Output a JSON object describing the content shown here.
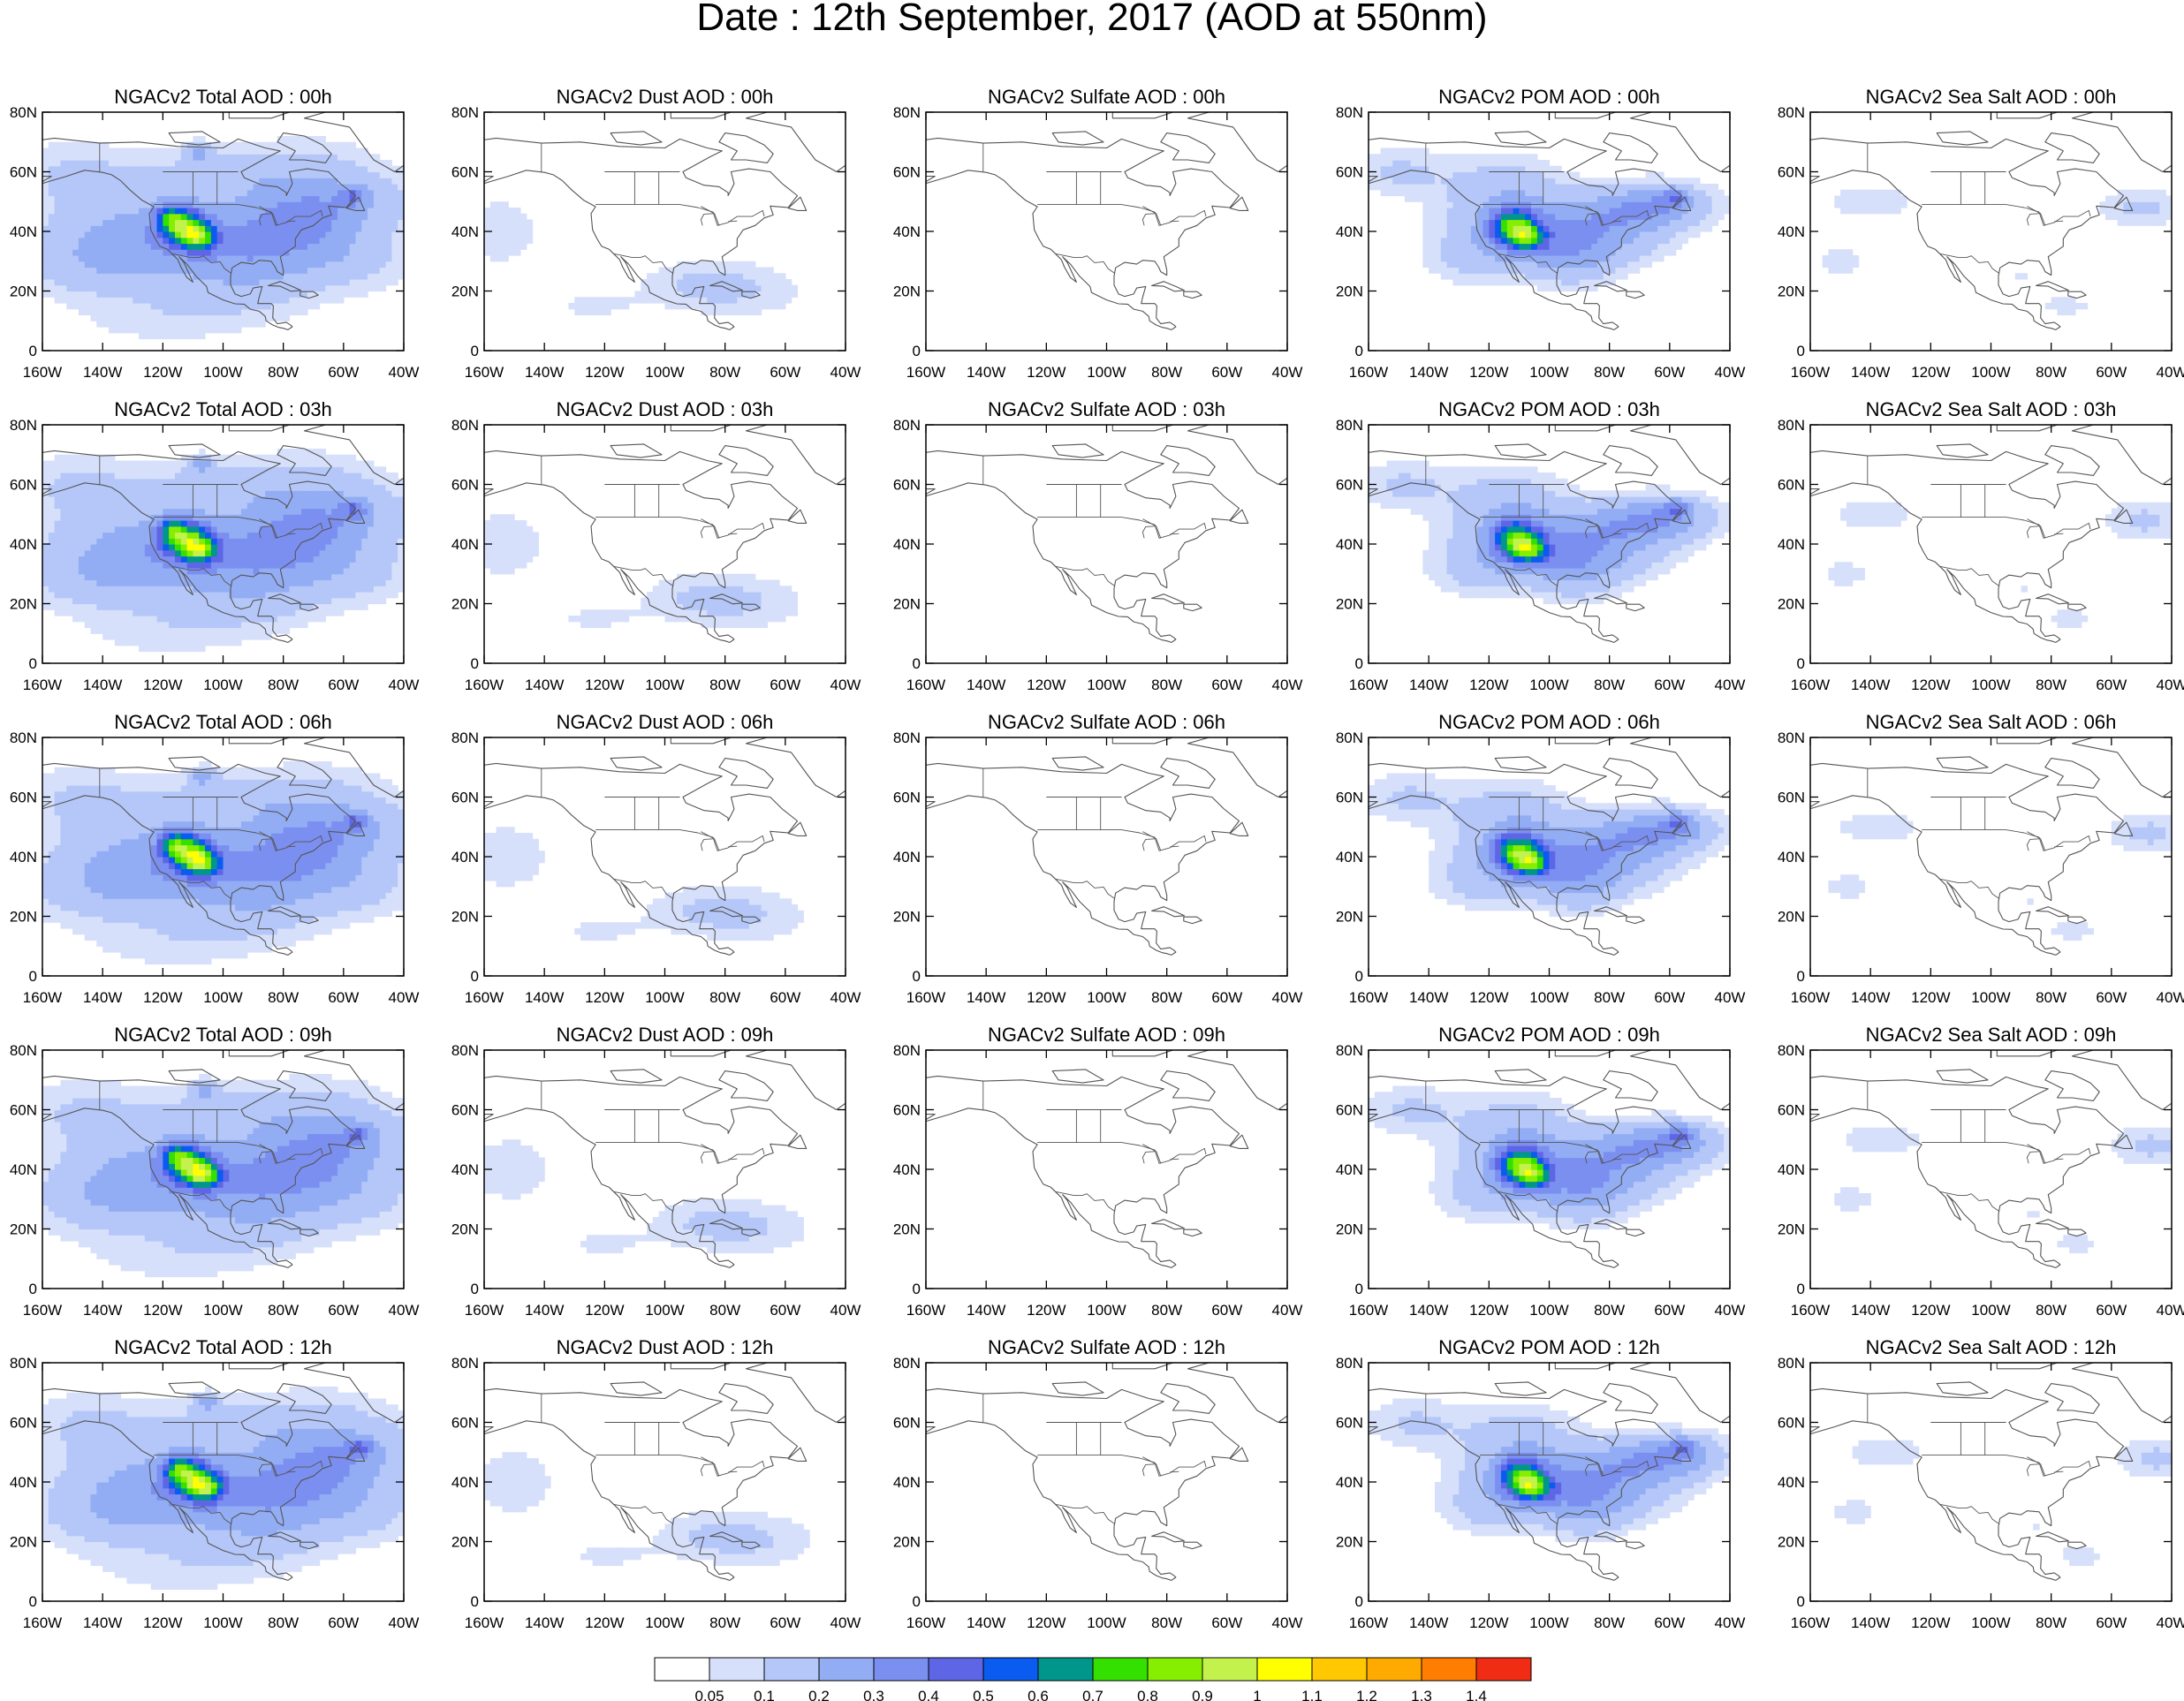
{
  "title": "Date : 12th September, 2017 (AOD at 550nm)",
  "lat_ticks": [
    "0",
    "20N",
    "40N",
    "60N",
    "80N"
  ],
  "lon_ticks": [
    "160W",
    "140W",
    "120W",
    "100W",
    "80W",
    "60W",
    "40W"
  ],
  "panels": [
    {
      "title": "NGACv2 Total AOD : 00h",
      "species": "total",
      "hour": 0
    },
    {
      "title": "NGACv2 Dust AOD : 00h",
      "species": "dust",
      "hour": 0
    },
    {
      "title": "NGACv2 Sulfate AOD : 00h",
      "species": "sulfate",
      "hour": 0
    },
    {
      "title": "NGACv2 POM AOD : 00h",
      "species": "pom",
      "hour": 0
    },
    {
      "title": "NGACv2 Sea Salt AOD : 00h",
      "species": "seasalt",
      "hour": 0
    },
    {
      "title": "NGACv2 Total AOD : 03h",
      "species": "total",
      "hour": 3
    },
    {
      "title": "NGACv2 Dust AOD : 03h",
      "species": "dust",
      "hour": 3
    },
    {
      "title": "NGACv2 Sulfate AOD : 03h",
      "species": "sulfate",
      "hour": 3
    },
    {
      "title": "NGACv2 POM AOD : 03h",
      "species": "pom",
      "hour": 3
    },
    {
      "title": "NGACv2 Sea Salt AOD : 03h",
      "species": "seasalt",
      "hour": 3
    },
    {
      "title": "NGACv2 Total AOD : 06h",
      "species": "total",
      "hour": 6
    },
    {
      "title": "NGACv2 Dust AOD : 06h",
      "species": "dust",
      "hour": 6
    },
    {
      "title": "NGACv2 Sulfate AOD : 06h",
      "species": "sulfate",
      "hour": 6
    },
    {
      "title": "NGACv2 POM AOD : 06h",
      "species": "pom",
      "hour": 6
    },
    {
      "title": "NGACv2 Sea Salt AOD : 06h",
      "species": "seasalt",
      "hour": 6
    },
    {
      "title": "NGACv2 Total AOD : 09h",
      "species": "total",
      "hour": 9
    },
    {
      "title": "NGACv2 Dust AOD : 09h",
      "species": "dust",
      "hour": 9
    },
    {
      "title": "NGACv2 Sulfate AOD : 09h",
      "species": "sulfate",
      "hour": 9
    },
    {
      "title": "NGACv2 POM AOD : 09h",
      "species": "pom",
      "hour": 9
    },
    {
      "title": "NGACv2 Sea Salt  AOD : 09h",
      "species": "seasalt",
      "hour": 9
    },
    {
      "title": "NGACv2 Total AOD  : 12h",
      "species": "total",
      "hour": 12
    },
    {
      "title": "NGACv2 Dust AOD : 12h",
      "species": "dust",
      "hour": 12
    },
    {
      "title": "NGACv2 Sulfate AOD : 12h",
      "species": "sulfate",
      "hour": 12
    },
    {
      "title": "NGACv2 POM  AOD : 12h",
      "species": "pom",
      "hour": 12
    },
    {
      "title": "NGACv2 Sea Salt  AOD : 12h",
      "species": "seasalt",
      "hour": 12
    }
  ],
  "colorbar": {
    "colors": [
      "#ffffff",
      "#d7e0fb",
      "#b4c7f8",
      "#93adf4",
      "#7b8ff0",
      "#5e66e6",
      "#0a5bf0",
      "#00968c",
      "#33e000",
      "#86ee00",
      "#c3f24c",
      "#ffff00",
      "#ffc800",
      "#ffaa00",
      "#ff7d00",
      "#f02d14"
    ],
    "labels": [
      "0.05",
      "0.1",
      "0.2",
      "0.3",
      "0.4",
      "0.5",
      "0.6",
      "0.7",
      "0.8",
      "0.9",
      "1",
      "1.1",
      "1.2",
      "1.3",
      "1.4"
    ]
  }
}
